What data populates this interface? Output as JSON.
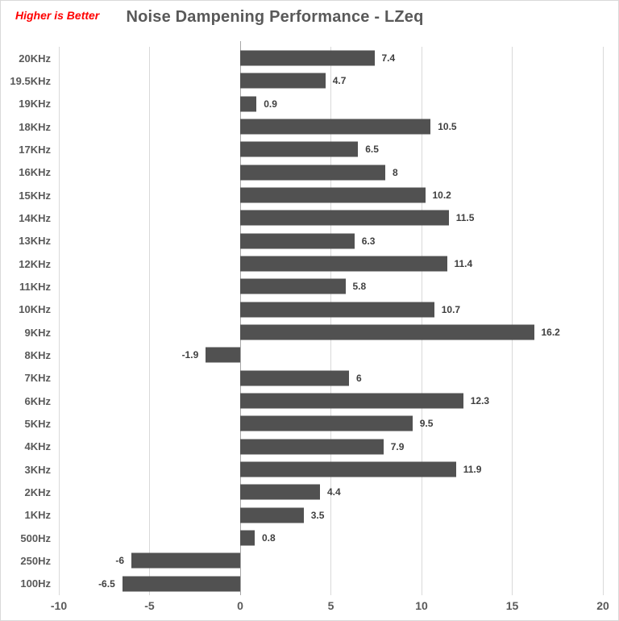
{
  "chart_data": {
    "type": "bar",
    "orientation": "horizontal",
    "title": "Noise Dampening Performance - LZeq",
    "note": "Higher is Better",
    "categories": [
      "20KHz",
      "19.5KHz",
      "19KHz",
      "18KHz",
      "17KHz",
      "16KHz",
      "15KHz",
      "14KHz",
      "13KHz",
      "12KHz",
      "11KHz",
      "10KHz",
      "9KHz",
      "8KHz",
      "7KHz",
      "6KHz",
      "5KHz",
      "4KHz",
      "3KHz",
      "2KHz",
      "1KHz",
      "500Hz",
      "250Hz",
      "100Hz"
    ],
    "values": [
      7.4,
      4.7,
      0.9,
      10.5,
      6.5,
      8,
      10.2,
      11.5,
      6.3,
      11.4,
      5.8,
      10.7,
      16.2,
      -1.9,
      6,
      12.3,
      9.5,
      7.9,
      11.9,
      4.4,
      3.5,
      0.8,
      -6,
      -6.5
    ],
    "value_labels": [
      "7.4",
      "4.7",
      "0.9",
      "10.5",
      "6.5",
      "8",
      "10.2",
      "11.5",
      "6.3",
      "11.4",
      "5.8",
      "10.7",
      "16.2",
      "-1.9",
      "6",
      "12.3",
      "9.5",
      "7.9",
      "11.9",
      "4.4",
      "3.5",
      "0.8",
      "-6",
      "-6.5"
    ],
    "xlabel": "",
    "ylabel": "",
    "xlim": [
      -10,
      20
    ],
    "x_ticks": [
      -10,
      -5,
      0,
      5,
      10,
      15,
      20
    ],
    "grid": true,
    "legend": false,
    "colors": {
      "bar": "#515151",
      "gridline": "#d9d9d9",
      "zero_line": "#a6a6a6",
      "title": "#595959",
      "axis_labels": "#595959",
      "value_labels": "#3f3f3f",
      "note": "#ff0000"
    }
  }
}
